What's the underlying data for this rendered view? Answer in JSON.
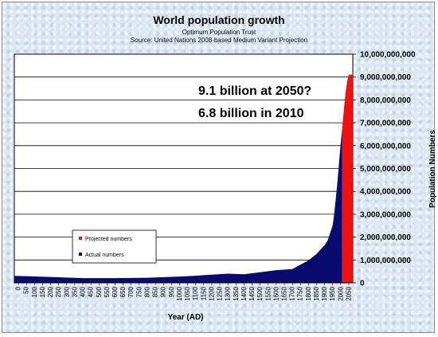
{
  "chart_data": {
    "type": "area",
    "title": "World population growth",
    "subtitle_1": "Optimum Population Trust",
    "subtitle_2": "Source: United Nations 2008-based Medium Variant Projection",
    "xlabel": "Year (AD)",
    "ylabel": "Population Numbers",
    "ylim": [
      0,
      10000000000
    ],
    "xlim": [
      0,
      2050
    ],
    "y_ticks": [
      "0",
      "1,000,000,000",
      "2,000,000,000",
      "3,000,000,000",
      "4,000,000,000",
      "5,000,000,000",
      "6,000,000,000",
      "7,000,000,000",
      "8,000,000,000",
      "9,000,000,000",
      "10,000,000,000"
    ],
    "x_tick_step": 50,
    "grid": "horizontal",
    "legend_placement": "bottom-left",
    "annotations": [
      "9.1 billion at 2050?",
      "6.8 billion in 2010"
    ],
    "series": [
      {
        "name": "Actual numbers",
        "color": "#0a0a6e",
        "points": [
          [
            0,
            300000000
          ],
          [
            200,
            257000000
          ],
          [
            400,
            206000000
          ],
          [
            600,
            206000000
          ],
          [
            800,
            224000000
          ],
          [
            1000,
            275000000
          ],
          [
            1100,
            310000000
          ],
          [
            1200,
            360000000
          ],
          [
            1300,
            400000000
          ],
          [
            1400,
            375000000
          ],
          [
            1500,
            460000000
          ],
          [
            1600,
            554000000
          ],
          [
            1700,
            603000000
          ],
          [
            1750,
            790000000
          ],
          [
            1800,
            980000000
          ],
          [
            1850,
            1260000000
          ],
          [
            1900,
            1650000000
          ],
          [
            1920,
            1860000000
          ],
          [
            1940,
            2300000000
          ],
          [
            1950,
            2520000000
          ],
          [
            1960,
            3020000000
          ],
          [
            1970,
            3700000000
          ],
          [
            1980,
            4440000000
          ],
          [
            1990,
            5290000000
          ],
          [
            2000,
            6090000000
          ],
          [
            2010,
            6800000000
          ]
        ]
      },
      {
        "name": "Projected numbers",
        "color": "#ee1111",
        "points": [
          [
            2010,
            6800000000
          ],
          [
            2020,
            7600000000
          ],
          [
            2030,
            8300000000
          ],
          [
            2040,
            8800000000
          ],
          [
            2050,
            9100000000
          ]
        ]
      }
    ]
  }
}
